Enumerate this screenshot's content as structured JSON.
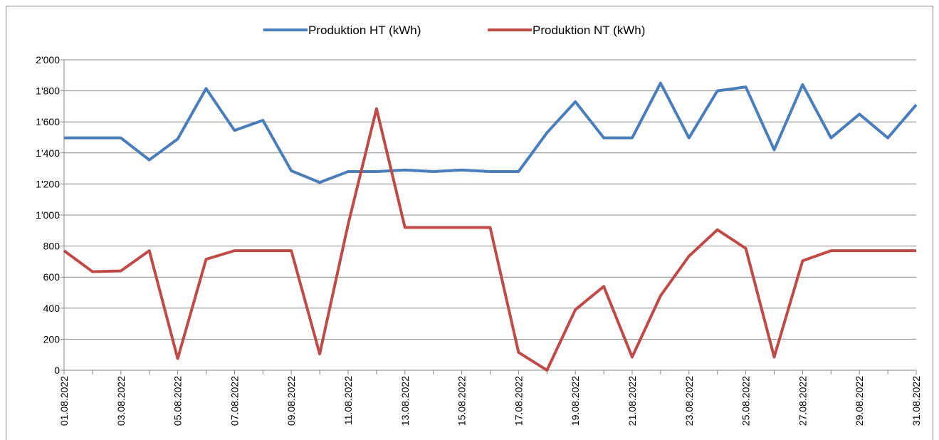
{
  "chart_data": {
    "type": "line",
    "categories": [
      "01.08.2022",
      null,
      "03.08.2022",
      null,
      "05.08.2022",
      null,
      "07.08.2022",
      null,
      "09.08.2022",
      null,
      "11.08.2022",
      null,
      "13.08.2022",
      null,
      "15.08.2022",
      null,
      "17.08.2022",
      null,
      "19.08.2022",
      null,
      "21.08.2022",
      null,
      "23.08.2022",
      null,
      "25.08.2022",
      null,
      "27.08.2022",
      null,
      "29.08.2022",
      null,
      "31.08.2022"
    ],
    "series": [
      {
        "name": "Produktion HT (kWh)",
        "color": "#4a7ebb",
        "values": [
          1497,
          1497,
          1497,
          1355,
          1490,
          1815,
          1545,
          1610,
          1285,
          1210,
          1280,
          1280,
          1290,
          1280,
          1290,
          1280,
          1280,
          1530,
          1730,
          1497,
          1497,
          1850,
          1497,
          1800,
          1825,
          1420,
          1840,
          1497,
          1650,
          1497,
          1710
        ]
      },
      {
        "name": "Produktion NT (kWh)",
        "color": "#be4b48",
        "values": [
          770,
          635,
          640,
          770,
          75,
          715,
          770,
          770,
          770,
          105,
          940,
          1685,
          920,
          920,
          920,
          920,
          115,
          0,
          390,
          540,
          85,
          480,
          735,
          905,
          785,
          85,
          705,
          770,
          770,
          770,
          770
        ]
      }
    ],
    "ylim": [
      0,
      2000
    ],
    "yticks": [
      0,
      200,
      400,
      600,
      800,
      {
        "value": 1000,
        "label": "1'000"
      },
      {
        "value": 1200,
        "label": "1'200"
      },
      {
        "value": 1400,
        "label": "1'400"
      },
      {
        "value": 1600,
        "label": "1'600"
      },
      {
        "value": 1800,
        "label": "1'800"
      },
      {
        "value": 2000,
        "label": "2'000"
      }
    ],
    "grid": true,
    "legend": "top"
  }
}
